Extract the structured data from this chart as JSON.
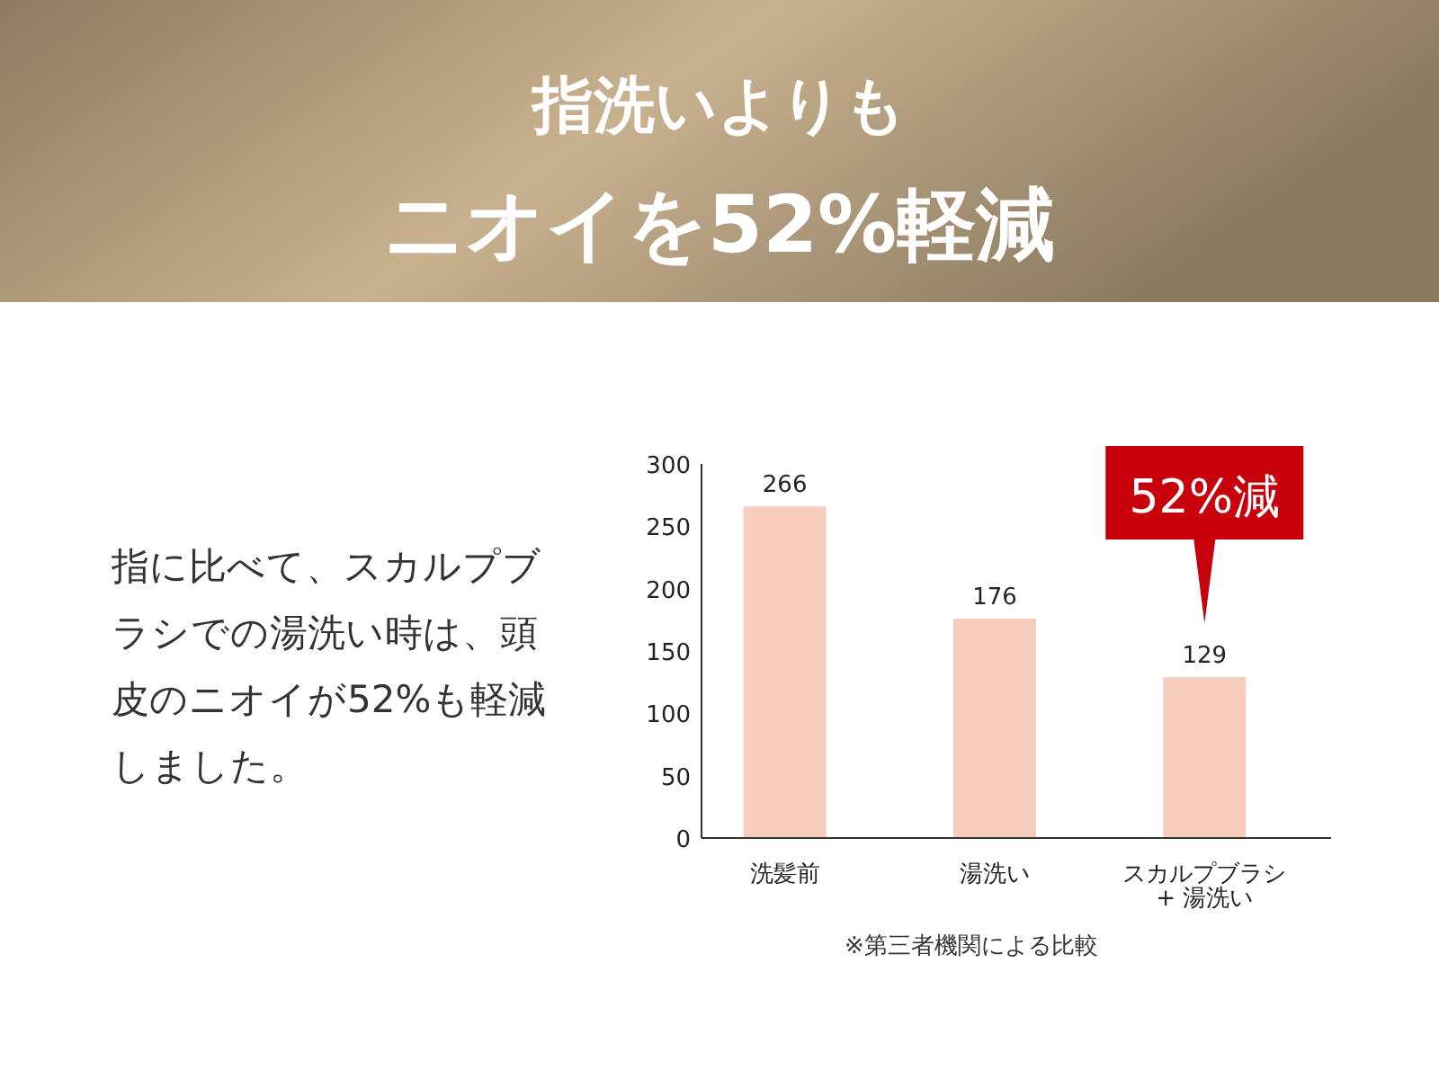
{
  "chart_data": {
    "type": "bar",
    "title": "指洗いよりも",
    "subtitle": "ニオイを52%軽減",
    "categories": [
      "洗髪前",
      "湯洗い",
      "スカルプブラシ\n+ 湯洗い"
    ],
    "values": [
      266,
      176,
      129
    ],
    "color": "#f7cdbd",
    "data_labels": true,
    "ylim": [
      0,
      300
    ],
    "yticks": [
      0,
      50,
      100,
      150,
      200,
      250,
      300
    ],
    "grid": false,
    "annotations": [
      "指に比べて、スカルプブラシでの湯洗い時は、頭皮のニオイが52%も軽減しました。",
      "52%減",
      "※第三者機関による比較"
    ]
  }
}
